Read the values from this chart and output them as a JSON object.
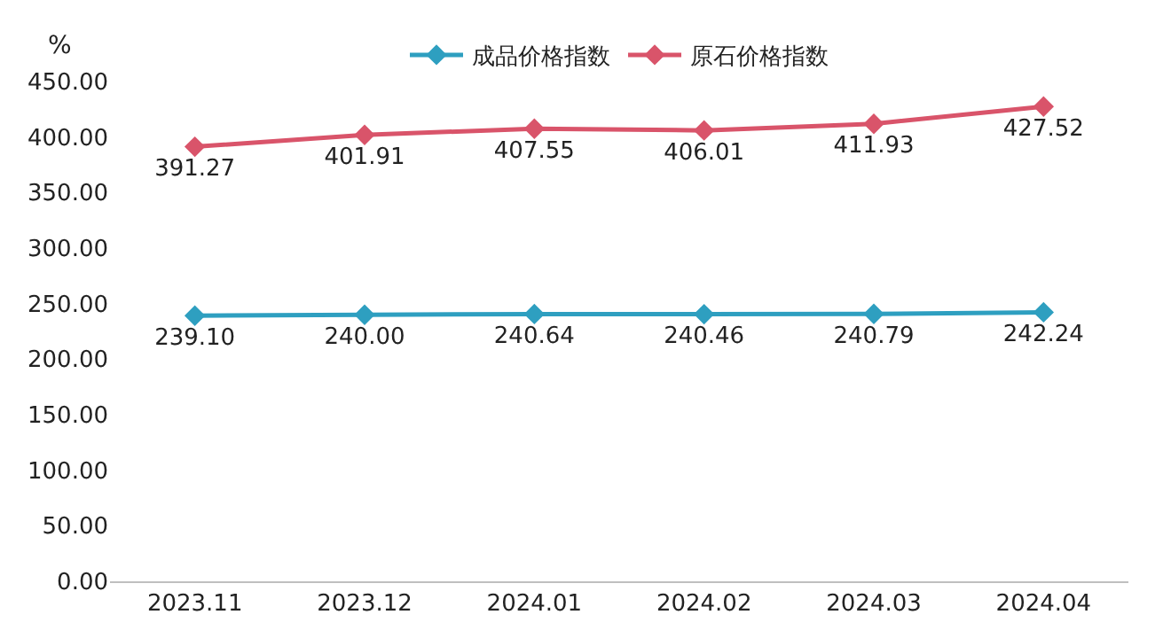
{
  "chart_data": {
    "type": "line",
    "ylabel": "%",
    "categories": [
      "2023.11",
      "2023.12",
      "2024.01",
      "2024.02",
      "2024.03",
      "2024.04"
    ],
    "series": [
      {
        "name": "成品价格指数",
        "color": "#2e9fc0",
        "values": [
          239.1,
          240.0,
          240.64,
          240.46,
          240.79,
          242.24
        ],
        "value_labels": [
          "239.10",
          "240.00",
          "240.64",
          "240.46",
          "240.79",
          "242.24"
        ]
      },
      {
        "name": "原石价格指数",
        "color": "#d9546a",
        "values": [
          391.27,
          401.91,
          407.55,
          406.01,
          411.93,
          427.52
        ],
        "value_labels": [
          "391.27",
          "401.91",
          "407.55",
          "406.01",
          "411.93",
          "427.52"
        ]
      }
    ],
    "ylim": [
      0,
      450
    ],
    "yticks": [
      {
        "value": 0,
        "label": "0.00"
      },
      {
        "value": 50,
        "label": "50.00"
      },
      {
        "value": 100,
        "label": "100.00"
      },
      {
        "value": 150,
        "label": "150.00"
      },
      {
        "value": 200,
        "label": "200.00"
      },
      {
        "value": 250,
        "label": "250.00"
      },
      {
        "value": 300,
        "label": "300.00"
      },
      {
        "value": 350,
        "label": "350.00"
      },
      {
        "value": 400,
        "label": "400.00"
      },
      {
        "value": 450,
        "label": "450.00"
      }
    ],
    "legend": "top",
    "marker": "diamond",
    "line_style": "solid"
  }
}
